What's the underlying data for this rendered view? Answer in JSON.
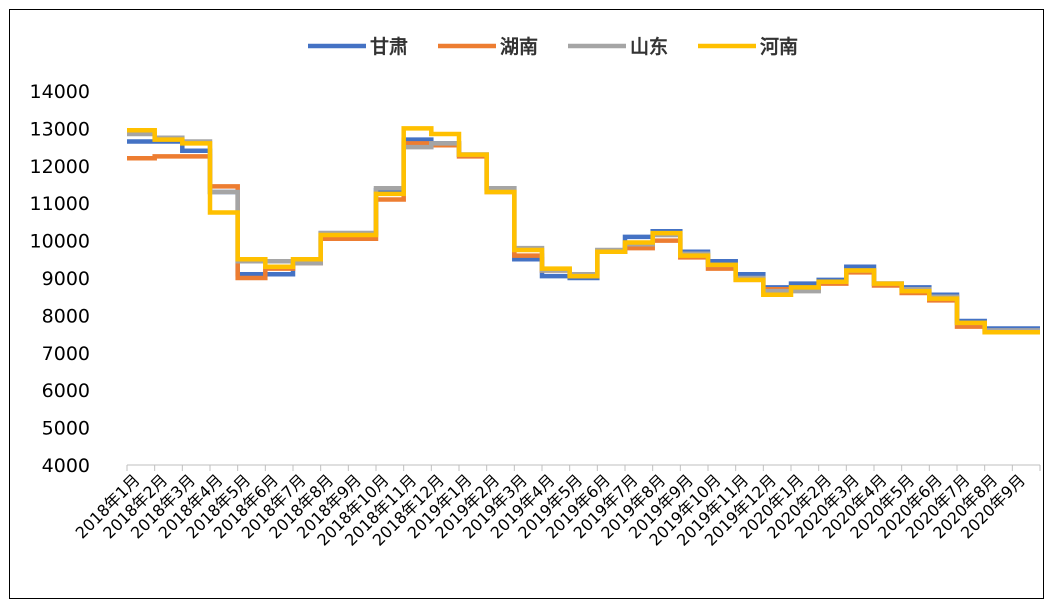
{
  "chart_data": {
    "type": "line",
    "title": "",
    "xlabel": "",
    "ylabel": "",
    "ylim": [
      4000,
      14000
    ],
    "yticks": [
      4000,
      5000,
      6000,
      7000,
      8000,
      9000,
      10000,
      11000,
      12000,
      13000,
      14000
    ],
    "grid": false,
    "legend_position": "top",
    "categories": [
      "2018年1月",
      "2018年2月",
      "2018年3月",
      "2018年4月",
      "2018年5月",
      "2018年6月",
      "2018年7月",
      "2018年8月",
      "2018年9月",
      "2018年10月",
      "2018年11月",
      "2018年12月",
      "2019年1月",
      "2019年2月",
      "2019年3月",
      "2019年4月",
      "2019年5月",
      "2019年6月",
      "2019年7月",
      "2019年8月",
      "2019年9月",
      "2019年10月",
      "2019年11月",
      "2019年12月",
      "2020年1月",
      "2020年2月",
      "2020年3月",
      "2020年4月",
      "2020年5月",
      "2020年6月",
      "2020年7月",
      "2020年8月",
      "2020年9月"
    ],
    "series": [
      {
        "name": "甘肃",
        "color": "#4472C4",
        "values": [
          12650,
          12650,
          12400,
          11300,
          9100,
          9100,
          9400,
          10200,
          10200,
          11350,
          12700,
          12600,
          12300,
          11400,
          9500,
          9050,
          9000,
          9700,
          10100,
          10250,
          9700,
          9450,
          9100,
          8750,
          8850,
          8950,
          9300,
          8850,
          8750,
          8550,
          7850,
          7650,
          7650
        ]
      },
      {
        "name": "湖南",
        "color": "#ED7D31",
        "values": [
          12200,
          12250,
          12250,
          11450,
          9000,
          9250,
          9400,
          10050,
          10050,
          11100,
          12600,
          12550,
          12250,
          11300,
          9600,
          9200,
          9050,
          9700,
          9800,
          10000,
          9550,
          9250,
          8950,
          8700,
          8700,
          8850,
          9150,
          8800,
          8600,
          8400,
          7700,
          7550,
          7550
        ]
      },
      {
        "name": "山东",
        "color": "#A5A5A5",
        "values": [
          12850,
          12750,
          12650,
          11300,
          9450,
          9450,
          9400,
          10200,
          10200,
          11400,
          12500,
          12600,
          12300,
          11400,
          9800,
          9200,
          9100,
          9750,
          9900,
          10150,
          9650,
          9350,
          9000,
          8650,
          8650,
          8900,
          9200,
          8850,
          8700,
          8500,
          7800,
          7600,
          7600
        ]
      },
      {
        "name": "河南",
        "color": "#FFC000",
        "values": [
          12950,
          12700,
          12600,
          10750,
          9500,
          9300,
          9500,
          10150,
          10150,
          11250,
          13000,
          12850,
          12300,
          11300,
          9750,
          9250,
          9050,
          9700,
          9950,
          10200,
          9600,
          9350,
          8950,
          8550,
          8750,
          8900,
          9200,
          8850,
          8650,
          8450,
          7800,
          7550,
          7550
        ]
      }
    ]
  }
}
